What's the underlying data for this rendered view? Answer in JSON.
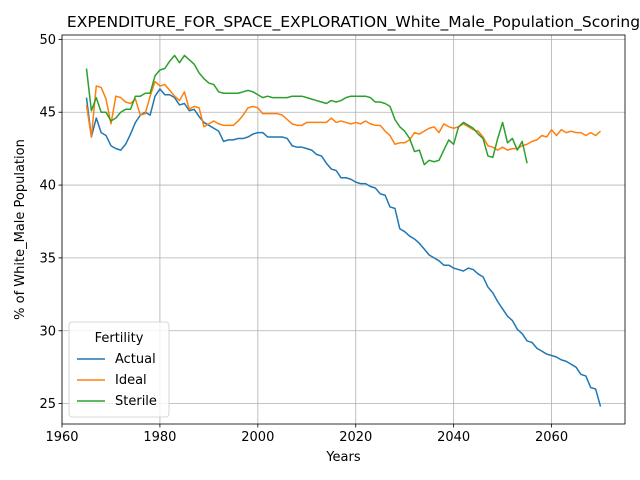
{
  "chart_data": {
    "type": "line",
    "title": "EXPENDITURE_FOR_SPACE_EXPLORATION_White_Male_Population_Scoring",
    "xlabel": "Years",
    "ylabel": "% of White_Male Population",
    "xlim": [
      1960,
      2075
    ],
    "ylim": [
      23.6,
      50.3
    ],
    "xticks": [
      1960,
      1980,
      2000,
      2020,
      2040,
      2060
    ],
    "yticks": [
      25,
      30,
      35,
      40,
      45,
      50
    ],
    "grid": true,
    "legend": {
      "title": "Fertility",
      "position": "lower-left"
    },
    "series": [
      {
        "name": "Actual",
        "color": "#1f77b4",
        "x": [
          1965,
          1966,
          1967,
          1968,
          1969,
          1970,
          1971,
          1972,
          1973,
          1974,
          1975,
          1976,
          1977,
          1978,
          1979,
          1980,
          1981,
          1982,
          1983,
          1984,
          1985,
          1986,
          1987,
          1988,
          1989,
          1990,
          1991,
          1992,
          1993,
          1994,
          1995,
          1996,
          1997,
          1998,
          1999,
          2000,
          2001,
          2002,
          2003,
          2004,
          2005,
          2006,
          2007,
          2008,
          2009,
          2010,
          2011,
          2012,
          2013,
          2014,
          2015,
          2016,
          2017,
          2018,
          2019,
          2020,
          2021,
          2022,
          2023,
          2024,
          2025,
          2026,
          2027,
          2028,
          2029,
          2030,
          2031,
          2032,
          2033,
          2034,
          2035,
          2036,
          2037,
          2038,
          2039,
          2040,
          2041,
          2042,
          2043,
          2044,
          2045,
          2046,
          2047,
          2048,
          2049,
          2050,
          2051,
          2052,
          2053,
          2054,
          2055,
          2056,
          2057,
          2058,
          2059,
          2060,
          2061,
          2062,
          2063,
          2064,
          2065,
          2066,
          2067,
          2068,
          2069,
          2070
        ],
        "y": [
          46.0,
          43.3,
          44.6,
          43.6,
          43.4,
          42.7,
          42.5,
          42.4,
          42.8,
          43.5,
          44.3,
          44.8,
          45.0,
          44.8,
          46.1,
          46.6,
          46.2,
          46.2,
          46.0,
          45.5,
          45.6,
          45.1,
          45.2,
          44.7,
          44.3,
          44.1,
          43.9,
          43.7,
          43.0,
          43.1,
          43.1,
          43.2,
          43.2,
          43.3,
          43.5,
          43.6,
          43.6,
          43.3,
          43.3,
          43.3,
          43.3,
          43.2,
          42.7,
          42.6,
          42.6,
          42.5,
          42.4,
          42.1,
          42.0,
          41.5,
          41.1,
          41.0,
          40.5,
          40.5,
          40.4,
          40.2,
          40.1,
          40.1,
          39.9,
          39.8,
          39.4,
          39.3,
          38.5,
          38.4,
          37.0,
          36.8,
          36.5,
          36.3,
          36.0,
          35.6,
          35.2,
          35.0,
          34.8,
          34.5,
          34.5,
          34.3,
          34.2,
          34.1,
          34.3,
          34.2,
          33.9,
          33.7,
          33.0,
          32.6,
          32.0,
          31.5,
          31.0,
          30.7,
          30.1,
          29.8,
          29.3,
          29.2,
          28.8,
          28.6,
          28.4,
          28.3,
          28.2,
          28.0,
          27.9,
          27.7,
          27.5,
          27.0,
          26.9,
          26.1,
          26.0,
          24.8
        ]
      },
      {
        "name": "Ideal",
        "color": "#ff7f0e",
        "x": [
          1965,
          1966,
          1967,
          1968,
          1969,
          1970,
          1971,
          1972,
          1973,
          1974,
          1975,
          1976,
          1977,
          1978,
          1979,
          1980,
          1981,
          1982,
          1983,
          1984,
          1985,
          1986,
          1987,
          1988,
          1989,
          1990,
          1991,
          1992,
          1993,
          1994,
          1995,
          1996,
          1997,
          1998,
          1999,
          2000,
          2001,
          2002,
          2003,
          2004,
          2005,
          2006,
          2007,
          2008,
          2009,
          2010,
          2011,
          2012,
          2013,
          2014,
          2015,
          2016,
          2017,
          2018,
          2019,
          2020,
          2021,
          2022,
          2023,
          2024,
          2025,
          2026,
          2027,
          2028,
          2029,
          2030,
          2031,
          2032,
          2033,
          2034,
          2035,
          2036,
          2037,
          2038,
          2039,
          2040,
          2041,
          2042,
          2043,
          2044,
          2045,
          2046,
          2047,
          2048,
          2049,
          2050,
          2051,
          2052,
          2053,
          2054,
          2055,
          2056,
          2057,
          2058,
          2059,
          2060,
          2061,
          2062,
          2063,
          2064,
          2065,
          2066,
          2067,
          2068,
          2069,
          2070
        ],
        "y": [
          45.5,
          43.3,
          46.8,
          46.7,
          45.9,
          44.2,
          46.1,
          46.0,
          45.7,
          45.6,
          45.9,
          44.8,
          44.9,
          46.1,
          47.1,
          46.8,
          46.9,
          46.5,
          46.1,
          45.8,
          46.4,
          45.2,
          45.4,
          45.3,
          44.0,
          44.2,
          44.4,
          44.2,
          44.1,
          44.1,
          44.1,
          44.4,
          44.8,
          45.3,
          45.4,
          45.3,
          44.9,
          44.9,
          44.9,
          44.9,
          44.8,
          44.5,
          44.2,
          44.1,
          44.1,
          44.3,
          44.3,
          44.3,
          44.3,
          44.3,
          44.6,
          44.3,
          44.4,
          44.3,
          44.2,
          44.3,
          44.2,
          44.4,
          44.2,
          44.1,
          44.1,
          43.7,
          43.4,
          42.8,
          42.9,
          42.9,
          43.1,
          43.6,
          43.5,
          43.7,
          43.9,
          44.0,
          43.6,
          44.2,
          44.0,
          43.9,
          44.0,
          44.2,
          44.0,
          43.8,
          43.7,
          43.3,
          42.7,
          42.6,
          42.4,
          42.6,
          42.4,
          42.5,
          42.5,
          42.7,
          42.8,
          43.0,
          43.1,
          43.4,
          43.3,
          43.8,
          43.4,
          43.8,
          43.6,
          43.7,
          43.6,
          43.6,
          43.4,
          43.6,
          43.4,
          43.7
        ]
      },
      {
        "name": "Sterile",
        "color": "#2ca02c",
        "x": [
          1965,
          1966,
          1967,
          1968,
          1969,
          1970,
          1971,
          1972,
          1973,
          1974,
          1975,
          1976,
          1977,
          1978,
          1979,
          1980,
          1981,
          1982,
          1983,
          1984,
          1985,
          1986,
          1987,
          1988,
          1989,
          1990,
          1991,
          1992,
          1993,
          1994,
          1995,
          1996,
          1997,
          1998,
          1999,
          2000,
          2001,
          2002,
          2003,
          2004,
          2005,
          2006,
          2007,
          2008,
          2009,
          2010,
          2011,
          2012,
          2013,
          2014,
          2015,
          2016,
          2017,
          2018,
          2019,
          2020,
          2021,
          2022,
          2023,
          2024,
          2025,
          2026,
          2027,
          2028,
          2029,
          2030,
          2031,
          2032,
          2033,
          2034,
          2035,
          2036,
          2037,
          2038,
          2039,
          2040,
          2041,
          2042,
          2043,
          2044,
          2045,
          2046,
          2047,
          2048,
          2049,
          2050,
          2051,
          2052,
          2053,
          2054,
          2055
        ],
        "y": [
          48.0,
          45.1,
          46.0,
          45.0,
          45.0,
          44.4,
          44.6,
          45.0,
          45.2,
          45.2,
          46.1,
          46.1,
          46.3,
          46.3,
          47.5,
          47.9,
          48.0,
          48.5,
          48.9,
          48.4,
          48.9,
          48.6,
          48.3,
          47.7,
          47.3,
          47.0,
          46.9,
          46.4,
          46.3,
          46.3,
          46.3,
          46.3,
          46.4,
          46.5,
          46.4,
          46.2,
          46.0,
          46.1,
          46.0,
          46.0,
          46.0,
          46.0,
          46.1,
          46.1,
          46.1,
          46.0,
          45.9,
          45.8,
          45.7,
          45.6,
          45.8,
          45.7,
          45.8,
          46.0,
          46.1,
          46.1,
          46.1,
          46.1,
          46.0,
          45.7,
          45.7,
          45.6,
          45.4,
          44.5,
          44.0,
          43.7,
          43.2,
          42.3,
          42.4,
          41.4,
          41.7,
          41.6,
          41.7,
          42.4,
          43.1,
          42.8,
          44.0,
          44.3,
          44.1,
          43.9,
          43.5,
          43.2,
          42.0,
          41.9,
          43.2,
          44.3,
          42.9,
          43.2,
          42.4,
          43.0,
          41.5
        ]
      }
    ]
  }
}
